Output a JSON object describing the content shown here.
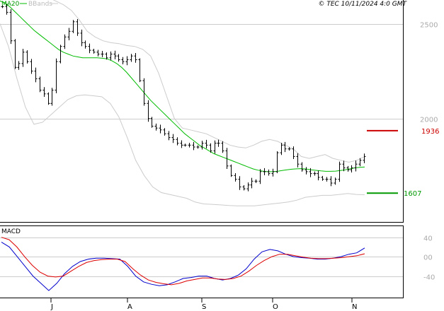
{
  "header": {
    "ma_label": "MA20",
    "bands_label": "BBands",
    "copyright": "© TEC 10/11/2024 4:0 GMT"
  },
  "colors": {
    "price": "#000000",
    "ma": "#00bb00",
    "bands": "#cccccc",
    "macd": "#0000cc",
    "signal": "#dd0000",
    "resistance": "#cc0000",
    "support": "#009900",
    "grid": "#cccccc"
  },
  "chart_data": [
    {
      "type": "bar",
      "title": "",
      "y_ticks": [
        2000,
        2500
      ],
      "x_ticks": [
        "J",
        "A",
        "S",
        "O",
        "N"
      ],
      "ylim": [
        1470,
        2610
      ],
      "levels": [
        {
          "name": "resistance",
          "value": 1936,
          "label": "1936"
        },
        {
          "name": "support",
          "value": 1607,
          "label": "1607"
        }
      ],
      "price_path": [
        2590,
        2560,
        2410,
        2270,
        2290,
        2350,
        2300,
        2250,
        2210,
        2150,
        2130,
        2080,
        2150,
        2300,
        2380,
        2430,
        2460,
        2510,
        2450,
        2400,
        2380,
        2360,
        2350,
        2340,
        2340,
        2320,
        2340,
        2330,
        2310,
        2300,
        2310,
        2330,
        2310,
        2200,
        2080,
        2000,
        1960,
        1950,
        1940,
        1920,
        1900,
        1890,
        1870,
        1860,
        1860,
        1860,
        1850,
        1850,
        1870,
        1860,
        1830,
        1870,
        1870,
        1830,
        1750,
        1700,
        1680,
        1640,
        1630,
        1650,
        1670,
        1670,
        1720,
        1720,
        1710,
        1720,
        1820,
        1860,
        1840,
        1840,
        1800,
        1760,
        1730,
        1720,
        1710,
        1710,
        1690,
        1680,
        1680,
        1660,
        1680,
        1760,
        1740,
        1730,
        1740,
        1760,
        1780,
        1800
      ],
      "ma20": [
        2620,
        2610,
        2590,
        2565,
        2540,
        2515,
        2490,
        2465,
        2445,
        2425,
        2405,
        2385,
        2365,
        2350,
        2340,
        2330,
        2325,
        2320,
        2320,
        2320,
        2320,
        2318,
        2315,
        2305,
        2290,
        2270,
        2245,
        2215,
        2185,
        2155,
        2125,
        2095,
        2070,
        2045,
        2020,
        1995,
        1970,
        1945,
        1920,
        1900,
        1880,
        1860,
        1845,
        1830,
        1815,
        1805,
        1795,
        1785,
        1775,
        1765,
        1755,
        1745,
        1735,
        1728,
        1723,
        1720,
        1720,
        1722,
        1726,
        1730,
        1733,
        1735,
        1736,
        1734,
        1730,
        1727,
        1724,
        1722,
        1722,
        1723,
        1726,
        1730,
        1735,
        1740,
        1743,
        1745
      ],
      "bb_upper": [
        2850,
        2860,
        2830,
        2780,
        2720,
        2670,
        2640,
        2620,
        2600,
        2570,
        2520,
        2460,
        2430,
        2410,
        2400,
        2395,
        2385,
        2380,
        2365,
        2330,
        2240,
        2120,
        2000,
        1950,
        1940,
        1930,
        1920,
        1900,
        1880,
        1860,
        1850,
        1845,
        1860,
        1880,
        1890,
        1880,
        1860,
        1840,
        1800,
        1790,
        1800,
        1810,
        1790,
        1780,
        1770,
        1780,
        1800
      ],
      "bb_lower": [
        2500,
        2380,
        2210,
        2060,
        1970,
        1980,
        2020,
        2060,
        2100,
        2120,
        2125,
        2120,
        2115,
        2080,
        2010,
        1900,
        1780,
        1700,
        1640,
        1610,
        1600,
        1590,
        1580,
        1560,
        1550,
        1548,
        1545,
        1542,
        1540,
        1540,
        1540,
        1545,
        1550,
        1555,
        1560,
        1570,
        1585,
        1590,
        1595,
        1595,
        1600,
        1605,
        1600,
        1598
      ]
    },
    {
      "type": "line",
      "title": "MACD",
      "y_ticks": [
        40,
        0,
        -40
      ],
      "y_tick_labels": [
        "40",
        "00",
        "-40"
      ],
      "ylim": [
        -80,
        60
      ],
      "series": [
        {
          "name": "MACD",
          "values": [
            30,
            20,
            0,
            -20,
            -40,
            -55,
            -70,
            -55,
            -35,
            -20,
            -10,
            -5,
            -3,
            -3,
            -4,
            -5,
            -20,
            -40,
            -52,
            -57,
            -60,
            -58,
            -52,
            -45,
            -43,
            -40,
            -40,
            -45,
            -48,
            -45,
            -38,
            -25,
            -5,
            10,
            15,
            12,
            5,
            0,
            -2,
            -3,
            -5,
            -5,
            -3,
            0,
            5,
            8,
            18
          ]
        },
        {
          "name": "Signal",
          "values": [
            40,
            35,
            20,
            0,
            -18,
            -32,
            -40,
            -42,
            -40,
            -30,
            -20,
            -12,
            -8,
            -6,
            -5,
            -5,
            -10,
            -25,
            -38,
            -48,
            -53,
            -56,
            -58,
            -55,
            -50,
            -47,
            -44,
            -44,
            -46,
            -47,
            -45,
            -40,
            -30,
            -18,
            -8,
            0,
            5,
            5,
            2,
            -1,
            -3,
            -4,
            -4,
            -3,
            -2,
            0,
            2,
            6
          ]
        }
      ]
    }
  ]
}
